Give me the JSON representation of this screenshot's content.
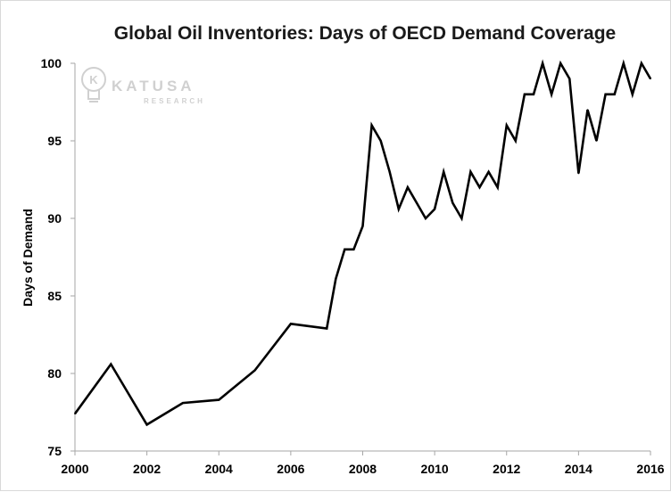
{
  "chart_data": {
    "type": "line",
    "title": "Global Oil Inventories: Days of OECD Demand Coverage",
    "xlabel": "",
    "ylabel": "Days of Demand",
    "xlim": [
      2000,
      2016
    ],
    "ylim": [
      75,
      100
    ],
    "x_ticks": [
      "2000",
      "2002",
      "2004",
      "2006",
      "2008",
      "2010",
      "2012",
      "2014",
      "2016"
    ],
    "y_ticks": [
      "75",
      "80",
      "85",
      "90",
      "95",
      "100"
    ],
    "grid": false,
    "series": [
      {
        "color": "#000000",
        "points": [
          [
            2000.0,
            77.4
          ],
          [
            2001.0,
            80.6
          ],
          [
            2002.0,
            76.7
          ],
          [
            2003.0,
            78.1
          ],
          [
            2004.0,
            78.3
          ],
          [
            2005.0,
            80.2
          ],
          [
            2006.0,
            83.2
          ],
          [
            2007.0,
            82.9
          ],
          [
            2007.25,
            86.1
          ],
          [
            2007.5,
            88.0
          ],
          [
            2007.75,
            88.0
          ],
          [
            2008.0,
            89.5
          ],
          [
            2008.25,
            96.0
          ],
          [
            2008.5,
            95.0
          ],
          [
            2008.75,
            93.0
          ],
          [
            2009.0,
            90.6
          ],
          [
            2009.25,
            92.0
          ],
          [
            2009.5,
            91.0
          ],
          [
            2009.75,
            90.0
          ],
          [
            2010.0,
            90.6
          ],
          [
            2010.25,
            93.0
          ],
          [
            2010.5,
            91.0
          ],
          [
            2010.75,
            90.0
          ],
          [
            2011.0,
            93.0
          ],
          [
            2011.25,
            92.0
          ],
          [
            2011.5,
            93.0
          ],
          [
            2011.75,
            92.0
          ],
          [
            2012.0,
            96.0
          ],
          [
            2012.25,
            95.0
          ],
          [
            2012.5,
            98.0
          ],
          [
            2012.75,
            98.0
          ],
          [
            2013.0,
            100.0
          ],
          [
            2013.25,
            98.0
          ],
          [
            2013.5,
            100.0
          ],
          [
            2013.75,
            99.0
          ],
          [
            2014.0,
            92.9
          ],
          [
            2014.25,
            97.0
          ],
          [
            2014.5,
            95.0
          ],
          [
            2014.75,
            98.0
          ],
          [
            2015.0,
            98.0
          ],
          [
            2015.25,
            100.0
          ],
          [
            2015.5,
            98.0
          ],
          [
            2015.75,
            100.0
          ],
          [
            2016.0,
            99.0
          ]
        ]
      }
    ]
  },
  "logo": {
    "text": "KATUSA",
    "subtext": "RESEARCH"
  },
  "colors": {
    "line": "#000000",
    "axis": "#a6a6a6",
    "logo": "#cccccc"
  }
}
